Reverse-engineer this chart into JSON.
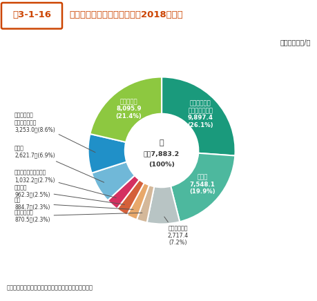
{
  "title_box": "図3-1-16",
  "title_main": "産業廃棄物の業種別排出量（2018年度）",
  "unit": "単位：万トン/年",
  "center_label_line1": "計",
  "center_label_line2": "３億7,883.2",
  "center_label_line3": "(100%)",
  "source": "資料：環境省「産業廃棄物排出・処理状況調査報告書」",
  "slices": [
    {
      "label": "電気・ガス・\n熱供給・水道業",
      "value": 9897.4,
      "pct": "26.1",
      "color": "#1a9a7c"
    },
    {
      "label": "建設業",
      "value": 7548.1,
      "pct": "19.9",
      "color": "#4db89e"
    },
    {
      "label": "その他の業種",
      "value": 2717.4,
      "pct": "7.2",
      "color": "#b8c4c4"
    },
    {
      "label": "食料品製造業",
      "value": 870.5,
      "pct": "2.3",
      "color": "#d4b89a"
    },
    {
      "label": "鉱業",
      "value": 884.7,
      "pct": "2.3",
      "color": "#e8a86a"
    },
    {
      "label": "化学工業",
      "value": 962.3,
      "pct": "2.5",
      "color": "#d4603a"
    },
    {
      "label": "窯業・土石製品製造業",
      "value": 1032.2,
      "pct": "2.7",
      "color": "#d43060"
    },
    {
      "label": "鉄鋼業",
      "value": 2621.7,
      "pct": "6.9",
      "color": "#70b8d8"
    },
    {
      "label": "パルプ・紙・\n紙加工品製造業",
      "value": 3253.0,
      "pct": "8.6",
      "color": "#2090c8"
    },
    {
      "label": "農業、林業",
      "value": 8095.9,
      "pct": "21.4",
      "color": "#8dc840"
    }
  ]
}
